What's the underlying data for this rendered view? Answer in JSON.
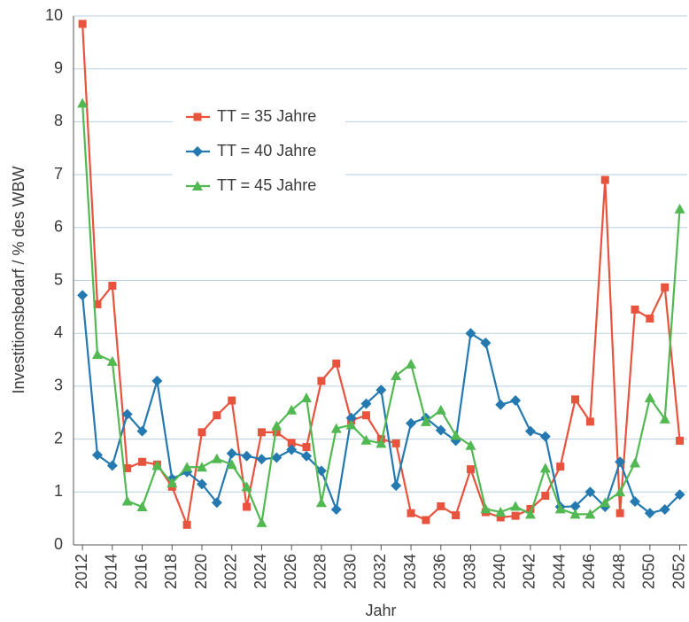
{
  "chart_data": {
    "type": "line",
    "y_label": "Investitionsbedarf / % des WBW",
    "x_label": "Jahr",
    "x": [
      2012,
      2013,
      2014,
      2015,
      2016,
      2017,
      2018,
      2019,
      2020,
      2021,
      2022,
      2023,
      2024,
      2025,
      2026,
      2027,
      2028,
      2029,
      2030,
      2031,
      2032,
      2033,
      2034,
      2035,
      2036,
      2037,
      2038,
      2039,
      2040,
      2041,
      2042,
      2043,
      2044,
      2045,
      2046,
      2047,
      2048,
      2049,
      2050,
      2051,
      2052
    ],
    "series": [
      {
        "name": "TT = 35 Jahre",
        "color": "#e8533e",
        "marker": "square",
        "values": [
          9.85,
          4.55,
          4.9,
          1.45,
          1.57,
          1.52,
          1.1,
          0.38,
          2.13,
          2.45,
          2.73,
          0.72,
          2.13,
          2.13,
          1.93,
          1.85,
          3.1,
          3.43,
          2.35,
          2.45,
          2.0,
          1.92,
          0.6,
          0.47,
          0.73,
          0.56,
          1.43,
          0.62,
          0.52,
          0.55,
          0.68,
          0.93,
          1.48,
          2.75,
          2.33,
          6.9,
          0.6,
          4.45,
          4.28,
          4.87,
          1.97
        ]
      },
      {
        "name": "TT = 40 Jahre",
        "color": "#2479b0",
        "marker": "diamond",
        "values": [
          4.72,
          1.7,
          1.5,
          2.47,
          2.15,
          3.1,
          1.25,
          1.38,
          1.15,
          0.8,
          1.73,
          1.68,
          1.62,
          1.65,
          1.8,
          1.68,
          1.4,
          0.67,
          2.4,
          2.67,
          2.93,
          1.12,
          2.3,
          2.4,
          2.17,
          1.97,
          4.0,
          3.82,
          2.65,
          2.73,
          2.15,
          2.05,
          0.72,
          0.73,
          1.0,
          0.72,
          1.57,
          0.82,
          0.6,
          0.67,
          0.95
        ]
      },
      {
        "name": "TT = 45 Jahre",
        "color": "#52b952",
        "marker": "triangle",
        "values": [
          8.35,
          3.6,
          3.47,
          0.83,
          0.72,
          1.5,
          1.17,
          1.47,
          1.47,
          1.63,
          1.52,
          1.1,
          0.42,
          2.25,
          2.55,
          2.78,
          0.8,
          2.2,
          2.27,
          1.98,
          1.92,
          3.2,
          3.42,
          2.33,
          2.55,
          2.07,
          1.88,
          0.68,
          0.62,
          0.73,
          0.58,
          1.45,
          0.68,
          0.58,
          0.58,
          0.8,
          1.0,
          1.55,
          2.78,
          2.38,
          6.35
        ]
      }
    ],
    "xlim": [
      2011.4,
      2052.5
    ],
    "xticks": [
      2012,
      2014,
      2016,
      2018,
      2020,
      2022,
      2024,
      2026,
      2028,
      2030,
      2032,
      2034,
      2036,
      2038,
      2040,
      2042,
      2044,
      2046,
      2048,
      2050,
      2052
    ],
    "ylim": [
      0,
      10
    ],
    "yticks": [
      0,
      1,
      2,
      3,
      4,
      5,
      6,
      7,
      8,
      9,
      10
    ],
    "grid": true,
    "legend": "upper left"
  }
}
